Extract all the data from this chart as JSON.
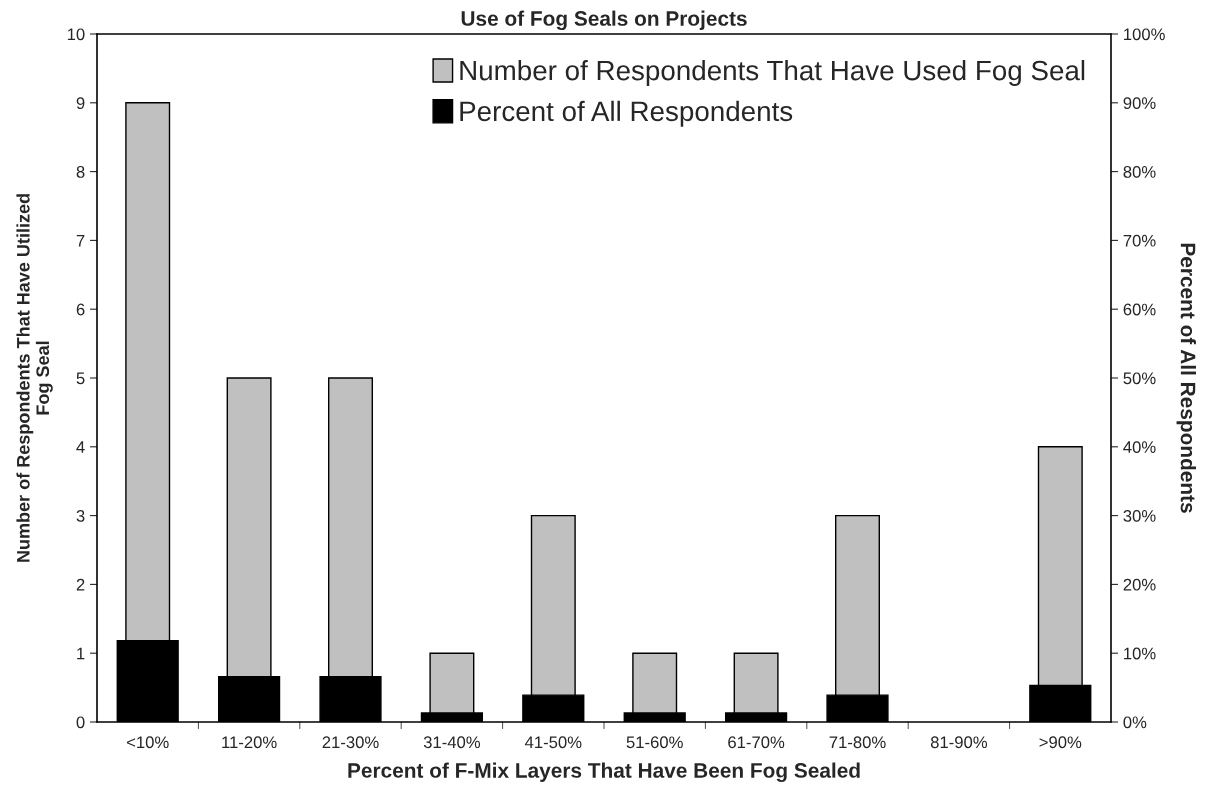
{
  "chart_data": {
    "type": "bar",
    "title": "Use of Fog Seals on Projects",
    "xlabel": "Percent of F-Mix Layers That Have Been Fog Sealed",
    "ylabel": "Number of Respondents That Have Utilized\nFog Seal",
    "y2label": "Percent of All Respondents",
    "categories": [
      "<10%",
      "11-20%",
      "21-30%",
      "31-40%",
      "41-50%",
      "51-60%",
      "61-70%",
      "71-80%",
      "81-90%",
      ">90%"
    ],
    "series": [
      {
        "name": "Number of Respondents That Have Used Fog Seal",
        "color": "#c0c0c0",
        "values": [
          9,
          5,
          5,
          1,
          3,
          1,
          1,
          3,
          0,
          4
        ]
      },
      {
        "name": "Percent of All Respondents",
        "color": "#000000",
        "axis": "y2",
        "values": [
          11.8,
          6.6,
          6.6,
          1.3,
          3.9,
          1.3,
          1.3,
          3.9,
          0,
          5.3
        ]
      }
    ],
    "ylim": [
      0,
      10
    ],
    "yticks": [
      0,
      1,
      2,
      3,
      4,
      5,
      6,
      7,
      8,
      9,
      10
    ],
    "y2lim": [
      0,
      100
    ],
    "y2ticks": [
      {
        "value": 0,
        "label": "0%"
      },
      {
        "value": 10,
        "label": "10%"
      },
      {
        "value": 20,
        "label": "20%"
      },
      {
        "value": 30,
        "label": "30%"
      },
      {
        "value": 40,
        "label": "40%"
      },
      {
        "value": 50,
        "label": "50%"
      },
      {
        "value": 60,
        "label": "60%"
      },
      {
        "value": 70,
        "label": "70%"
      },
      {
        "value": 80,
        "label": "80%"
      },
      {
        "value": 90,
        "label": "90%"
      },
      {
        "value": 100,
        "label": "100%"
      }
    ],
    "grid": false,
    "legend": "top right"
  }
}
